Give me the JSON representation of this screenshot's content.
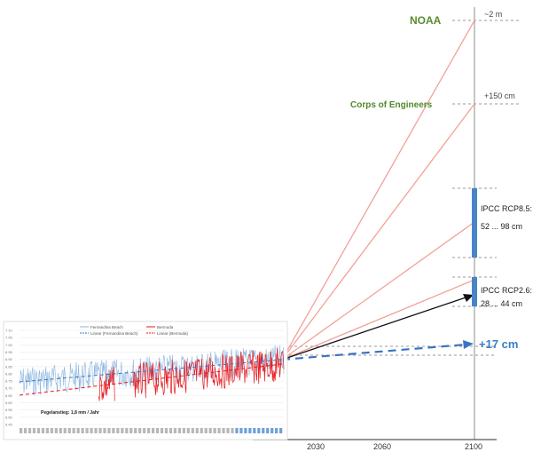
{
  "chart_data": {
    "type": "line",
    "projection": {
      "x_ticks": [
        "2030",
        "2060",
        "2100"
      ],
      "scenarios": [
        {
          "source": "NOAA",
          "value_label": "~2 m",
          "color": "#5b8a2f"
        },
        {
          "source": "Corps of Engineers",
          "value_label": "+150 cm",
          "color": "#4f8a2a"
        },
        {
          "source": "IPCC RCP8.5:",
          "value_label": "52 ... 98 cm",
          "range_cm": [
            52,
            98
          ]
        },
        {
          "source": "IPCC RCP2.6:",
          "value_label": "28 ... 44 cm",
          "range_cm": [
            28,
            44
          ]
        },
        {
          "source": "",
          "value_label": "+17 cm",
          "color": "#3a7fc6"
        }
      ]
    },
    "tide_gauge_inset": {
      "legend": [
        "Fernandina Beach",
        "Bermuda",
        "Linear (Fernandina Beach)",
        "Linear (Bermuda)"
      ],
      "annotation": "Pegelanstieg: 1,8 mm / Jahr",
      "y_ticks": [
        "7.10",
        "7.05",
        "7.00",
        "6.95",
        "6.90",
        "6.85",
        "6.80",
        "6.75",
        "6.70",
        "6.65",
        "6.60",
        "6.55",
        "6.50",
        "6.45"
      ],
      "series": [
        {
          "name": "Fernandina Beach",
          "color": "#8ab6e0"
        },
        {
          "name": "Bermuda",
          "color": "#e8161b"
        }
      ],
      "trend": {
        "name": "Linear",
        "value": "1.8 mm/yr"
      }
    }
  },
  "colors": {
    "projection_lines": "#f3a19a",
    "ipcc_bars": "#4a83c9",
    "trend_dash": "#3a73c2",
    "axis": "#8c8c8c"
  }
}
